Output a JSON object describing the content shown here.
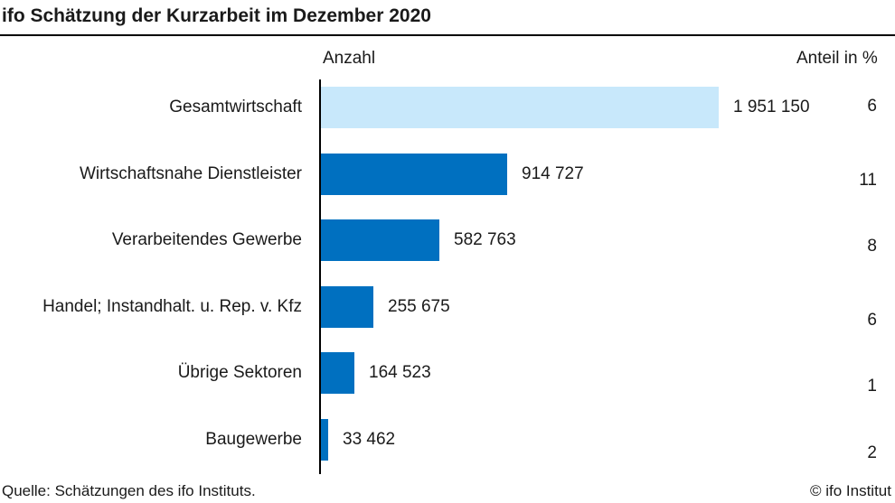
{
  "title": "ifo Schätzung der Kurzarbeit im Dezember 2020",
  "header": {
    "left": "Anzahl",
    "right": "Anteil in %"
  },
  "footer": {
    "source": "Quelle: Schätzungen des ifo Instituts.",
    "copyright": "© ifo Institut"
  },
  "colors": {
    "highlight": "#c8e8fb",
    "bar": "#0070c0"
  },
  "chart_data": {
    "type": "bar",
    "orientation": "horizontal",
    "title": "ifo Schätzung der Kurzarbeit im Dezember 2020",
    "categories": [
      "Gesamtwirtschaft",
      "Wirtschaftsnahe Dienstleister",
      "Verarbeitendes Gewerbe",
      "Handel; Instandhalt. u. Rep. v. Kfz",
      "Übrige Sektoren",
      "Baugewerbe"
    ],
    "values": [
      1951150,
      914727,
      582763,
      255675,
      164523,
      33462
    ],
    "value_labels": [
      "1 951 150",
      "914 727",
      "582 763",
      "255 675",
      "164 523",
      "33 462"
    ],
    "share_labels": [
      "6",
      "11",
      "8",
      "6",
      "1",
      "2"
    ],
    "xlabel": "Anzahl",
    "secondary_label": "Anteil in %",
    "xlim": [
      0,
      1951150
    ],
    "grid": false,
    "legend": "none"
  }
}
